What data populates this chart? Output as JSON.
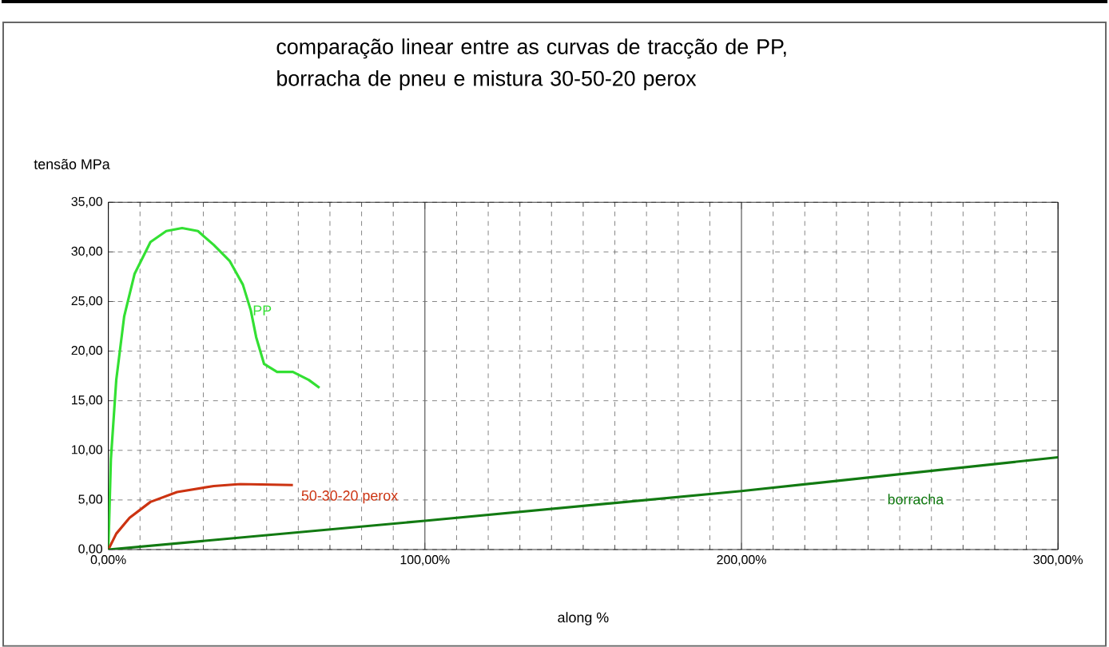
{
  "chart_data": {
    "type": "line",
    "title": "comparação linear entre as curvas de tracção de PP, borracha de pneu e mistura 30-50-20 perox",
    "xlabel": "along %",
    "ylabel": "tensão MPa",
    "xlim": [
      0,
      300
    ],
    "ylim": [
      0,
      35
    ],
    "xticks": [
      {
        "value": 0,
        "label": "0,00%"
      },
      {
        "value": 100,
        "label": "100,00%"
      },
      {
        "value": 200,
        "label": "200,00%"
      },
      {
        "value": 300,
        "label": "300,00%"
      }
    ],
    "yticks": [
      {
        "value": 0,
        "label": "0,00"
      },
      {
        "value": 5,
        "label": "5,00"
      },
      {
        "value": 10,
        "label": "10,00"
      },
      {
        "value": 15,
        "label": "15,00"
      },
      {
        "value": 20,
        "label": "20,00"
      },
      {
        "value": 25,
        "label": "25,00"
      },
      {
        "value": 30,
        "label": "30,00"
      },
      {
        "value": 35,
        "label": "35,00"
      }
    ],
    "grid": true,
    "legend": false,
    "marker": "none",
    "series": [
      {
        "name": "PP",
        "color": "#33e033",
        "x": [
          0,
          0.8,
          2.5,
          5,
          8.3,
          13.3,
          18.3,
          23.3,
          28.3,
          33.3,
          38.3,
          42.5,
          45,
          46.7,
          49.2,
          53.3,
          58.3,
          63.3,
          66.7
        ],
        "values": [
          0,
          9.1,
          17.1,
          23.5,
          27.8,
          31.0,
          32.1,
          32.4,
          32.1,
          30.7,
          29.1,
          26.7,
          24.1,
          21.4,
          18.7,
          17.9,
          17.9,
          17.1,
          16.3
        ]
      },
      {
        "name": "50-30-20 perox",
        "color": "#cc3311",
        "x": [
          0,
          2.5,
          6.7,
          13.3,
          21.7,
          33.3,
          41.7,
          58.3
        ],
        "values": [
          0,
          1.6,
          3.2,
          4.8,
          5.8,
          6.4,
          6.6,
          6.5
        ]
      },
      {
        "name": "borracha",
        "color": "#127a12",
        "x": [
          0,
          100,
          200,
          300
        ],
        "values": [
          0,
          2.9,
          5.9,
          9.3
        ]
      }
    ]
  }
}
